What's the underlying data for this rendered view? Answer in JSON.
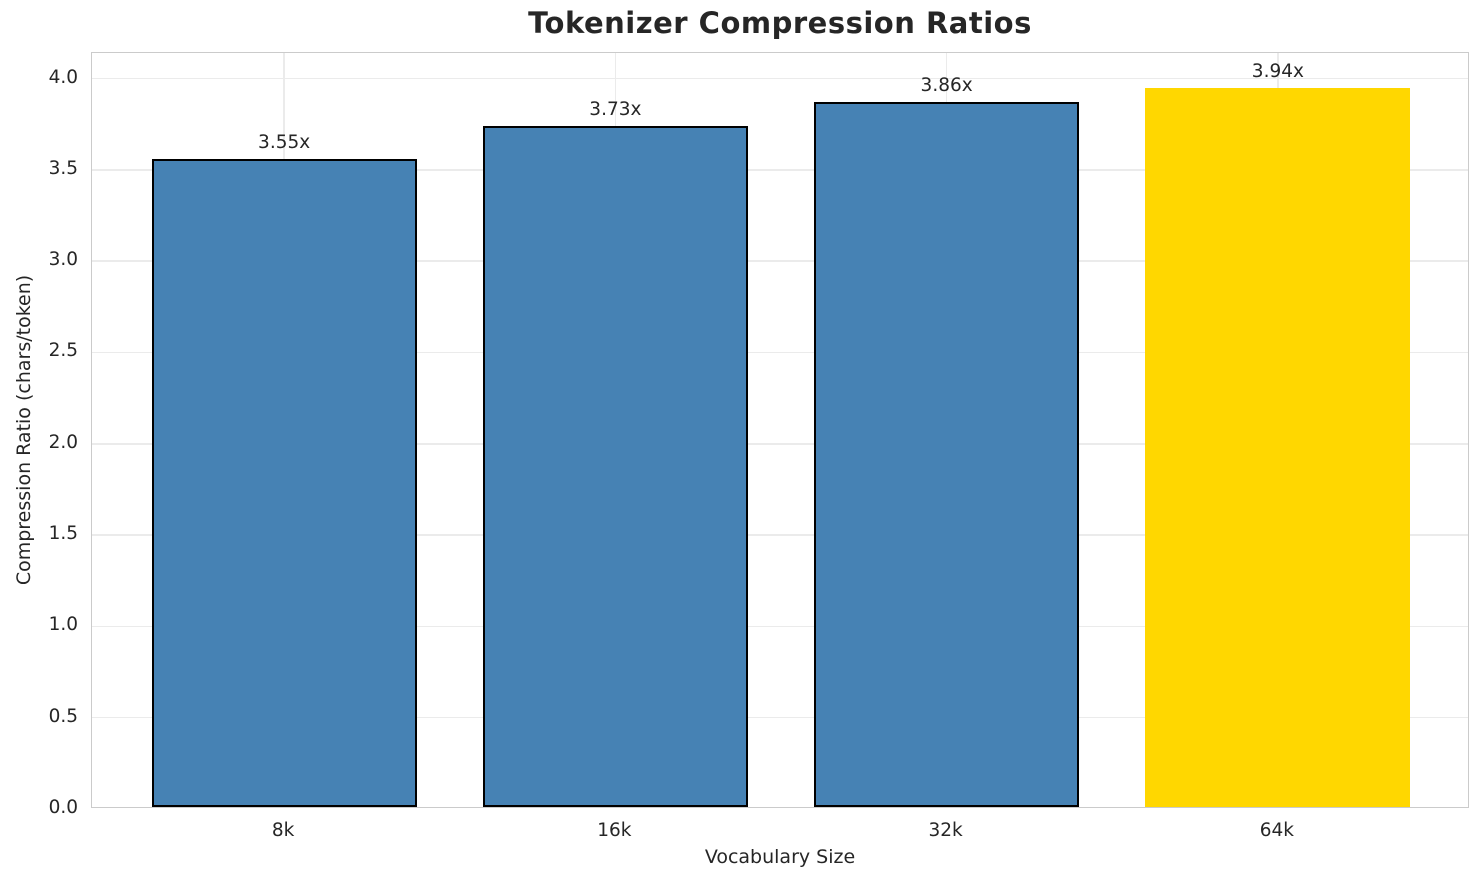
{
  "chart_data": {
    "type": "bar",
    "title": "Tokenizer Compression Ratios",
    "xlabel": "Vocabulary Size",
    "ylabel": "Compression Ratio (chars/token)",
    "categories": [
      "8k",
      "16k",
      "32k",
      "64k"
    ],
    "values": [
      3.55,
      3.73,
      3.86,
      3.94
    ],
    "bar_labels": [
      "3.55x",
      "3.73x",
      "3.86x",
      "3.94x"
    ],
    "bar_colors": [
      "#4682B4",
      "#4682B4",
      "#4682B4",
      "#FFD700"
    ],
    "bar_edge_colors": [
      "#000000",
      "#000000",
      "#000000",
      "none"
    ],
    "highlighted_category": "64k",
    "ylim": [
      0,
      4.14
    ],
    "yticks": [
      0.0,
      0.5,
      1.0,
      1.5,
      2.0,
      2.5,
      3.0,
      3.5,
      4.0
    ],
    "ytick_labels": [
      "0.0",
      "0.5",
      "1.0",
      "1.5",
      "2.0",
      "2.5",
      "3.0",
      "3.5",
      "4.0"
    ],
    "bar_width_fraction": 0.8,
    "grid": "both",
    "legend": "none"
  },
  "colors": {
    "bar_blue": "#4682B4",
    "bar_gold": "#FFD700",
    "bar_edge": "#000000",
    "gridline": "#ebebeb",
    "spine": "#cbcbcb",
    "text": "#262626",
    "background": "#ffffff"
  }
}
